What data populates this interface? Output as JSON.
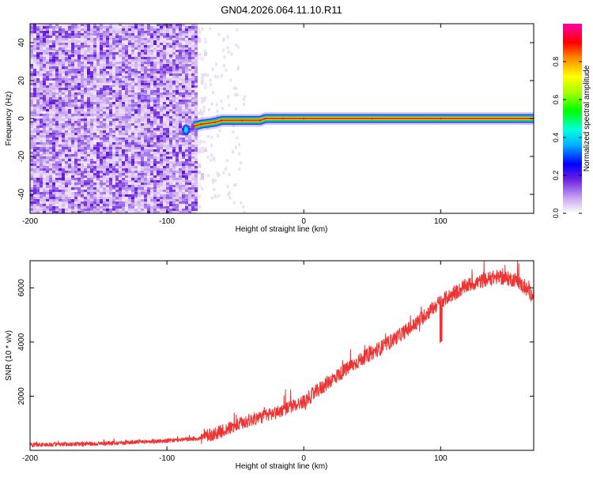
{
  "title": "GN04.2026.064.11.10.R11",
  "spectrogram": {
    "type": "heatmap",
    "xlabel": "Height of straight line (km)",
    "ylabel": "Frequency (Hz)",
    "xlim": [
      -200,
      168
    ],
    "ylim": [
      -50,
      50
    ],
    "xticks": [
      -200,
      -100,
      0,
      100
    ],
    "yticks": [
      -40,
      -20,
      0,
      20,
      40
    ],
    "noise_region_x": [
      -200,
      -78
    ],
    "track": [
      {
        "x": -80,
        "y": -4
      },
      {
        "x": -75,
        "y": -3
      },
      {
        "x": -65,
        "y": -2
      },
      {
        "x": -60,
        "y": -1
      },
      {
        "x": -45,
        "y": -1
      },
      {
        "x": -32,
        "y": -1
      },
      {
        "x": -28,
        "y": 0
      },
      {
        "x": -15,
        "y": 0
      },
      {
        "x": 0,
        "y": 0
      },
      {
        "x": 50,
        "y": 0
      },
      {
        "x": 100,
        "y": 0
      },
      {
        "x": 168,
        "y": 0
      }
    ]
  },
  "colorbar": {
    "label": "Normalized spectral amplitude",
    "ticks": [
      0.0,
      0.2,
      0.4,
      0.6,
      0.8
    ],
    "tick_labels": [
      "0.0",
      "0.2",
      "0.4",
      "0.6",
      "0.8"
    ],
    "range": [
      0,
      1
    ]
  },
  "snr": {
    "type": "line",
    "xlabel": "Height of straight line (km)",
    "ylabel": "SNR (10 * v/v)",
    "xlim": [
      -200,
      168
    ],
    "ylim": [
      0,
      7000
    ],
    "xticks": [
      -200,
      -100,
      0,
      100
    ],
    "yticks": [
      2000,
      4000,
      6000
    ],
    "color": "#ee3333",
    "trend": [
      {
        "x": -200,
        "y": 200
      },
      {
        "x": -150,
        "y": 250
      },
      {
        "x": -100,
        "y": 350
      },
      {
        "x": -75,
        "y": 450
      },
      {
        "x": -60,
        "y": 700
      },
      {
        "x": -40,
        "y": 1100
      },
      {
        "x": -20,
        "y": 1400
      },
      {
        "x": 0,
        "y": 1800
      },
      {
        "x": 20,
        "y": 2600
      },
      {
        "x": 40,
        "y": 3300
      },
      {
        "x": 60,
        "y": 3900
      },
      {
        "x": 80,
        "y": 4600
      },
      {
        "x": 100,
        "y": 5500
      },
      {
        "x": 120,
        "y": 6100
      },
      {
        "x": 140,
        "y": 6400
      },
      {
        "x": 155,
        "y": 6300
      },
      {
        "x": 168,
        "y": 5700
      }
    ]
  }
}
